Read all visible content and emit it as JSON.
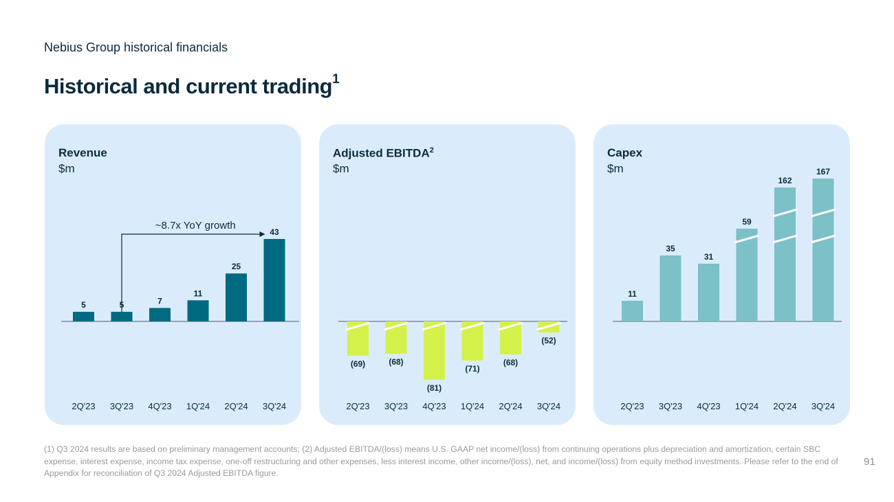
{
  "header": {
    "subtitle": "Nebius Group historical financials",
    "title": "Historical and current trading",
    "title_sup": "1"
  },
  "colors": {
    "card_bg": "#daecfc",
    "revenue_bar": "#006a80",
    "ebitda_bar": "#d4f14a",
    "capex_bar": "#7cc0c8",
    "text_dark": "#0b2a3c",
    "axis": "#4a5a66"
  },
  "chart_data": [
    {
      "type": "bar",
      "title": "Revenue",
      "title_sup": "",
      "unit": "$m",
      "categories": [
        "2Q'23",
        "3Q'23",
        "4Q'23",
        "1Q'24",
        "2Q'24",
        "3Q'24"
      ],
      "values": [
        5,
        5,
        7,
        11,
        25,
        43
      ],
      "labels": [
        "5",
        "5",
        "7",
        "11",
        "25",
        "43"
      ],
      "axis_breaks": [
        0,
        0,
        0,
        0,
        0,
        0
      ],
      "annotation": {
        "text": "~8.7x YoY growth",
        "from_category": "3Q'23",
        "to_category": "3Q'24"
      },
      "ylim": [
        0,
        43
      ]
    },
    {
      "type": "bar",
      "title": "Adjusted EBITDA",
      "title_sup": "2",
      "unit": "$m",
      "categories": [
        "2Q'23",
        "3Q'23",
        "4Q'23",
        "1Q'24",
        "2Q'24",
        "3Q'24"
      ],
      "values": [
        -69,
        -68,
        -81,
        -71,
        -68,
        -52
      ],
      "labels": [
        "(69)",
        "(68)",
        "(81)",
        "(71)",
        "(68)",
        "(52)"
      ],
      "axis_breaks": [
        1,
        1,
        1,
        1,
        1,
        1
      ],
      "ylim": [
        -81,
        0
      ]
    },
    {
      "type": "bar",
      "title": "Capex",
      "title_sup": "",
      "unit": "$m",
      "categories": [
        "2Q'23",
        "3Q'23",
        "4Q'23",
        "1Q'24",
        "2Q'24",
        "3Q'24"
      ],
      "values": [
        11,
        35,
        31,
        59,
        162,
        167
      ],
      "labels": [
        "11",
        "35",
        "31",
        "59",
        "162",
        "167"
      ],
      "axis_breaks": [
        0,
        0,
        0,
        1,
        2,
        2
      ],
      "ylim": [
        0,
        167
      ]
    }
  ],
  "footnote": "(1) Q3 2024 results are based on preliminary management accounts; (2) Adjusted EBITDA/(loss) means U.S. GAAP net income/(loss) from continuing operations plus depreciation and amortization, certain SBC expense, interest expense, income tax expense, one-off restructuring and other expenses, less interest income, other income/(loss), net, and income/(loss) from equity method investments. Please refer to the end of Appendix for reconciliation of Q3 2024 Adjusted EBITDA figure.",
  "page_number": "91"
}
